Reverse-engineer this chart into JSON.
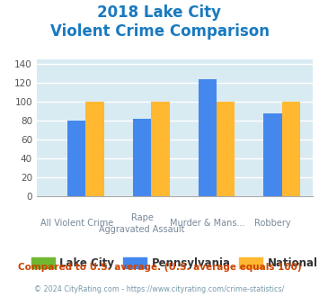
{
  "title_line1": "2018 Lake City",
  "title_line2": "Violent Crime Comparison",
  "title_color": "#1a7abf",
  "categories_line1": [
    "All Violent Crime",
    "Rape",
    "Murder & Mans...",
    "Robbery"
  ],
  "categories_line2": [
    "",
    "Aggravated Assault",
    "",
    ""
  ],
  "series": {
    "Lake City": {
      "color": "#70b832",
      "values": [
        0,
        0,
        0,
        0
      ]
    },
    "Pennsylvania": {
      "color": "#4488ee",
      "values": [
        80,
        82,
        124,
        88
      ]
    },
    "National": {
      "color": "#ffb830",
      "values": [
        100,
        100,
        100,
        100
      ]
    }
  },
  "ylim": [
    0,
    145
  ],
  "yticks": [
    0,
    20,
    40,
    60,
    80,
    100,
    120,
    140
  ],
  "plot_bg": "#d8eaf2",
  "grid_color": "#ffffff",
  "footer_text": "Compared to U.S. average. (U.S. average equals 100)",
  "footer_color": "#cc4400",
  "copyright_text": "© 2024 CityRating.com - https://www.cityrating.com/crime-statistics/",
  "copyright_color": "#7799aa",
  "bar_width": 0.28
}
